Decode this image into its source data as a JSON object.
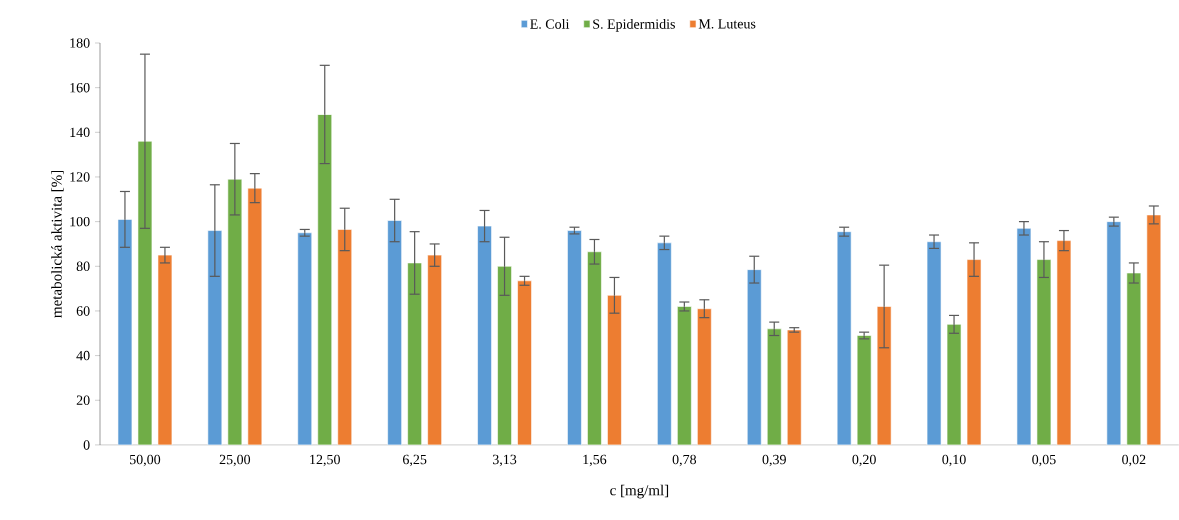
{
  "chart_data": {
    "type": "bar",
    "xlabel": "c [mg/ml]",
    "ylabel": "metabolická aktivita [%]",
    "categories": [
      "50,00",
      "25,00",
      "12,50",
      "6,25",
      "3,13",
      "1,56",
      "0,78",
      "0,39",
      "0,20",
      "0,10",
      "0,05",
      "0,02"
    ],
    "series": [
      {
        "name": "E. Coli",
        "color": "#5b9bd5",
        "values": [
          101,
          96,
          95,
          100.5,
          98,
          96,
          90.5,
          78.5,
          95.5,
          91,
          97,
          100
        ],
        "errors": [
          12.5,
          20.5,
          1.5,
          9.5,
          7,
          1.5,
          3,
          6,
          2,
          3,
          3,
          2
        ]
      },
      {
        "name": "S. Epidermidis",
        "color": "#70ad47",
        "values": [
          136,
          119,
          148,
          81.5,
          80,
          86.5,
          62,
          52,
          49,
          54,
          83,
          77
        ],
        "errors": [
          39,
          16,
          22,
          14,
          13,
          5.5,
          2,
          3,
          1.5,
          4,
          8,
          4.5
        ]
      },
      {
        "name": "M. Luteus",
        "color": "#ed7d31",
        "values": [
          85,
          115,
          96.5,
          85,
          73.5,
          67,
          61,
          51.5,
          62,
          83,
          91.5,
          103
        ],
        "errors": [
          3.5,
          6.5,
          9.5,
          5,
          2,
          8,
          4,
          1,
          18.5,
          7.5,
          4.5,
          4
        ]
      }
    ],
    "ylim": [
      0,
      180
    ],
    "yticks": [
      0,
      20,
      40,
      60,
      80,
      100,
      120,
      140,
      160,
      180
    ],
    "grid": false,
    "legend": "top"
  }
}
